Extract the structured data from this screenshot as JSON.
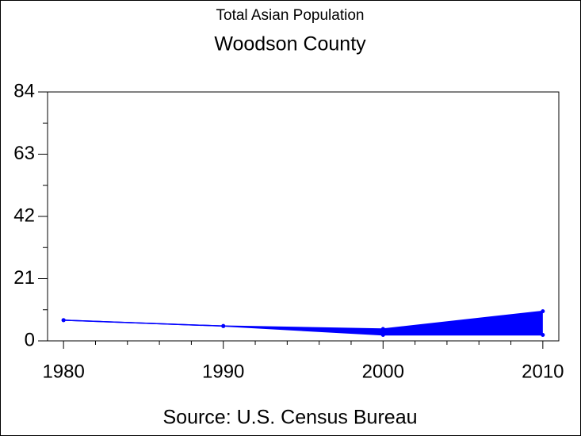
{
  "chart_data": {
    "type": "line",
    "title": "Total Asian Population",
    "subtitle": "Woodson County",
    "source": "Source: U.S. Census Bureau",
    "x": [
      1980,
      1990,
      2000,
      2010
    ],
    "series": [
      {
        "color": "#0000ff",
        "values": [
          7,
          5,
          4,
          10
        ]
      },
      {
        "color": "#0000ff",
        "values": [
          7,
          5,
          2,
          2
        ]
      }
    ],
    "fill_between": true,
    "xlim": [
      1979,
      2011
    ],
    "xticks": [
      1980,
      1990,
      2000,
      2010
    ],
    "xminorticks": [
      1982,
      1984,
      1986,
      1988,
      1992,
      1994,
      1996,
      1998,
      2002,
      2004,
      2006,
      2008
    ],
    "ylim": [
      0,
      84
    ],
    "yticks": [
      0,
      21,
      42,
      63,
      84
    ],
    "yminorticks": [
      10.5,
      31.5,
      52.5,
      73.5
    ]
  }
}
